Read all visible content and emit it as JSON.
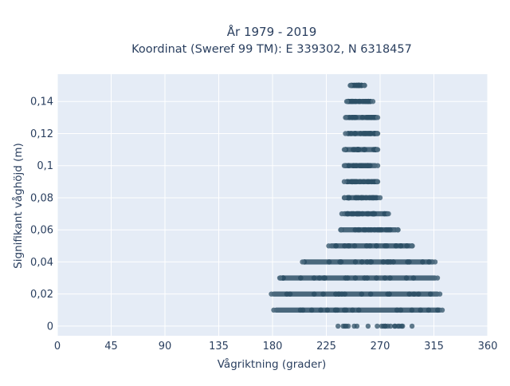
{
  "chart_data": {
    "type": "scatter",
    "title": "År 1979 - 2019",
    "subtitle": "Koordinat (Sweref 99 TM): E 339302, N 6318457",
    "xlabel": "Vågriktning (grader)",
    "ylabel": "Signifikant våghöjd (m)",
    "xlim": [
      0,
      360
    ],
    "ylim": [
      -0.006,
      0.157
    ],
    "xticks": [
      0,
      45,
      90,
      135,
      180,
      225,
      270,
      315,
      360
    ],
    "xtick_labels": [
      "0",
      "45",
      "90",
      "135",
      "180",
      "225",
      "270",
      "315",
      "360"
    ],
    "yticks": [
      0,
      0.02,
      0.04,
      0.06,
      0.08,
      0.1,
      0.12,
      0.14
    ],
    "ytick_labels": [
      "0",
      "0,02",
      "0,04",
      "0,06",
      "0,08",
      "0,1",
      "0,12",
      "0,14"
    ],
    "grid": true,
    "legend": "none",
    "marker_color": "#2e5066",
    "plot_background": "#e5ecf6",
    "series": [
      {
        "bands": [
          {
            "y": 0.0,
            "x_min": 227,
            "x_max": 297,
            "sparse": true
          },
          {
            "y": 0.01,
            "x_min": 181,
            "x_max": 322,
            "sparse": false
          },
          {
            "y": 0.02,
            "x_min": 179,
            "x_max": 320,
            "sparse": false
          },
          {
            "y": 0.03,
            "x_min": 186,
            "x_max": 318,
            "sparse": false
          },
          {
            "y": 0.04,
            "x_min": 205,
            "x_max": 316,
            "sparse": false
          },
          {
            "y": 0.05,
            "x_min": 227,
            "x_max": 297,
            "sparse": false
          },
          {
            "y": 0.06,
            "x_min": 237,
            "x_max": 285,
            "sparse": false
          },
          {
            "y": 0.07,
            "x_min": 238,
            "x_max": 277,
            "sparse": false
          },
          {
            "y": 0.08,
            "x_min": 240,
            "x_max": 270,
            "sparse": false
          },
          {
            "y": 0.09,
            "x_min": 240,
            "x_max": 268,
            "sparse": false
          },
          {
            "y": 0.1,
            "x_min": 240,
            "x_max": 268,
            "sparse": false
          },
          {
            "y": 0.11,
            "x_min": 240,
            "x_max": 268,
            "sparse": false
          },
          {
            "y": 0.12,
            "x_min": 241,
            "x_max": 268,
            "sparse": false
          },
          {
            "y": 0.13,
            "x_min": 241,
            "x_max": 268,
            "sparse": false
          },
          {
            "y": 0.14,
            "x_min": 242,
            "x_max": 264,
            "sparse": false
          },
          {
            "y": 0.15,
            "x_min": 245,
            "x_max": 257,
            "sparse": false
          }
        ]
      }
    ]
  }
}
